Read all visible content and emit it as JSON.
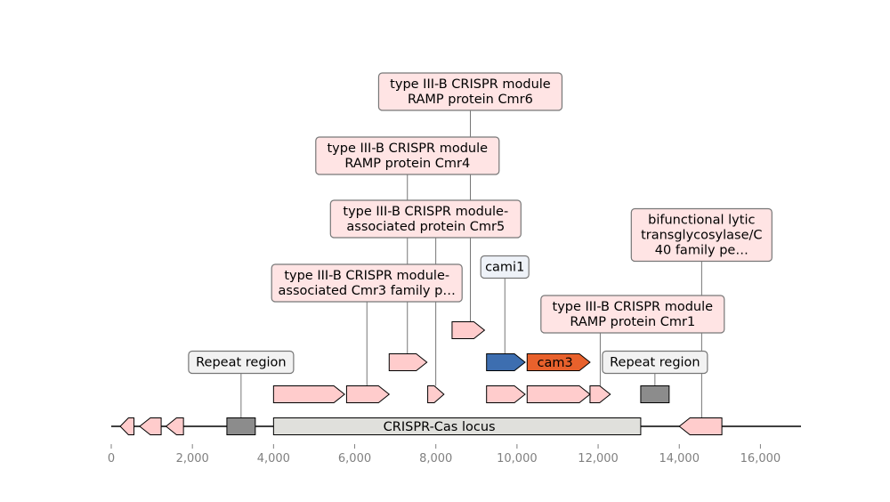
{
  "chart_data": {
    "type": "genomic-map",
    "axis": {
      "min": 0,
      "max": 17000,
      "ticks": [
        0,
        2000,
        4000,
        6000,
        8000,
        10000,
        12000,
        14000,
        16000
      ],
      "tick_labels": [
        "0",
        "2,000",
        "4,000",
        "6,000",
        "8,000",
        "10,000",
        "12,000",
        "14,000",
        "16,000"
      ]
    },
    "backbone": {
      "start": 0,
      "end": 17000
    },
    "locus": {
      "name": "CRISPR-Cas locus",
      "start": 4000,
      "end": 13050,
      "color": "#e0e0dc"
    },
    "features": [
      {
        "name": "",
        "start": 220,
        "end": 560,
        "strand": -1,
        "lane": 0,
        "color": "#ffcccc"
      },
      {
        "name": "",
        "start": 700,
        "end": 1230,
        "strand": -1,
        "lane": 0,
        "color": "#ffcccc"
      },
      {
        "name": "",
        "start": 1350,
        "end": 1780,
        "strand": -1,
        "lane": 0,
        "color": "#ffcccc"
      },
      {
        "name": "Repeat region",
        "start": 2850,
        "end": 3550,
        "strand": 0,
        "lane": 0,
        "color": "#8c8c8c",
        "label": "Repeat region",
        "label_row": 1,
        "label_bg": "#f2f2f2",
        "label_x": 3200
      },
      {
        "name": "",
        "start": 14000,
        "end": 15050,
        "strand": -1,
        "lane": 0,
        "color": "#ffcccc"
      },
      {
        "name": "bifunctional lytic transglycosylase/C40 family pe...",
        "start": 14000,
        "end": 15050,
        "strand": -1,
        "lane": 0,
        "color": "#ffcccc",
        "hidden": true,
        "label": "bifunctional lytic\ntransglycosylase/C\n40 family pe…",
        "label_row": 4,
        "label_bg": "#ffe4e4",
        "label_x": 14550
      },
      {
        "name": "type III-B CRISPR module-associated Cmr3 family p...",
        "start": 4000,
        "end": 5750,
        "strand": 1,
        "lane": 1,
        "color": "#ffcccc"
      },
      {
        "name": "",
        "start": 5800,
        "end": 6850,
        "strand": 1,
        "lane": 1,
        "color": "#ffcccc",
        "label": "type III-B CRISPR module-\nassociated Cmr3 family p…",
        "label_row": 3,
        "label_bg": "#ffe4e4",
        "label_x": 6300
      },
      {
        "name": "type III-B CRISPR module-associated protein Cmr5",
        "start": 7800,
        "end": 8200,
        "strand": 1,
        "lane": 1,
        "color": "#ffcccc",
        "label": "type III-B CRISPR module-\nassociated protein Cmr5",
        "label_row": 5,
        "label_bg": "#ffe4e4",
        "label_x": 8000,
        "label_center_x": 7750
      },
      {
        "name": "",
        "start": 9250,
        "end": 10200,
        "strand": 1,
        "lane": 1,
        "color": "#ffcccc"
      },
      {
        "name": "",
        "start": 10250,
        "end": 11800,
        "strand": 1,
        "lane": 1,
        "color": "#ffcccc"
      },
      {
        "name": "type III-B CRISPR module RAMP protein Cmr1",
        "start": 11800,
        "end": 12300,
        "strand": 1,
        "lane": 1,
        "color": "#ffcccc",
        "label": "type III-B CRISPR module\nRAMP protein Cmr1",
        "label_row": 2,
        "label_bg": "#ffe4e4",
        "label_x": 12050,
        "label_center_x": 12850
      },
      {
        "name": "Repeat region",
        "start": 13050,
        "end": 13750,
        "strand": 0,
        "lane": 1,
        "color": "#8c8c8c",
        "label": "Repeat region",
        "label_row": 1,
        "label_bg": "#f2f2f2",
        "label_x": 13400
      },
      {
        "name": "type III-B CRISPR module RAMP protein Cmr4",
        "start": 6850,
        "end": 7780,
        "strand": 1,
        "lane": 2,
        "color": "#ffcccc",
        "label": "type III-B CRISPR module\nRAMP protein Cmr4",
        "label_row": 6,
        "label_bg": "#ffe4e4",
        "label_x": 7300
      },
      {
        "name": "cami1",
        "start": 9250,
        "end": 10200,
        "strand": 1,
        "lane": 2,
        "color": "#3d6eb0",
        "label": "cami1",
        "label_row": 3.5,
        "label_bg": "#eef2f8",
        "label_x": 9700,
        "label_center_x": 9700
      },
      {
        "name": "cam3",
        "start": 10250,
        "end": 11800,
        "strand": 1,
        "lane": 2,
        "color": "#e8612c",
        "inner_label": "cam3"
      },
      {
        "name": "type III-B CRISPR module RAMP protein Cmr6",
        "start": 8400,
        "end": 9200,
        "strand": 1,
        "lane": 3,
        "color": "#ffcccc",
        "label": "type III-B CRISPR module\nRAMP protein Cmr6",
        "label_row": 7,
        "label_bg": "#ffe4e4",
        "label_x": 8850,
        "label_center_x": 8850
      }
    ]
  }
}
